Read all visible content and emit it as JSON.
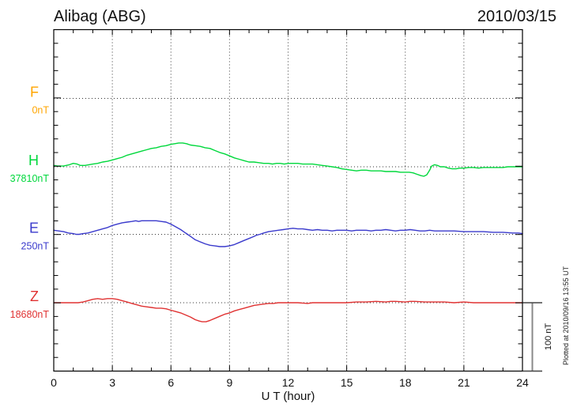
{
  "header": {
    "station": "Alibag (ABG)",
    "date": "2010/03/15"
  },
  "chart_data": {
    "type": "line",
    "title": "Alibag (ABG)",
    "date": "2010/03/15",
    "xlabel": "U T (hour)",
    "xlim": [
      0,
      24
    ],
    "x_major_ticks": [
      0,
      3,
      6,
      9,
      12,
      15,
      18,
      21,
      24
    ],
    "x_minor_step_hours": 1,
    "grid": "dotted vertical lines every 3 h; dotted horizontal line at each component baseline",
    "y_minor_tick_nT": 20,
    "baseline_spacing_nT": 100,
    "scale_bar": {
      "label": "100 nT",
      "value_nT": 100
    },
    "footnote": "Plotted at 2010/09/16 13:55 UT",
    "series": [
      {
        "name": "F",
        "baseline_label": "0nT",
        "color": "#FFA500",
        "points_hour_nT": []
      },
      {
        "name": "H",
        "baseline_label": "37810nT",
        "color": "#00D83C",
        "points_hour_nT": [
          [
            0,
            2
          ],
          [
            0.2,
            1
          ],
          [
            0.5,
            1
          ],
          [
            0.8,
            3
          ],
          [
            1,
            5
          ],
          [
            1.2,
            4
          ],
          [
            1.35,
            2
          ],
          [
            1.6,
            2
          ],
          [
            1.8,
            3
          ],
          [
            2,
            4
          ],
          [
            2.25,
            5
          ],
          [
            2.5,
            7
          ],
          [
            2.75,
            8
          ],
          [
            3,
            10
          ],
          [
            3.25,
            12
          ],
          [
            3.5,
            14
          ],
          [
            3.75,
            17
          ],
          [
            4,
            19
          ],
          [
            4.25,
            21
          ],
          [
            4.5,
            23
          ],
          [
            4.75,
            25
          ],
          [
            5,
            27
          ],
          [
            5.25,
            28
          ],
          [
            5.5,
            30
          ],
          [
            5.75,
            31
          ],
          [
            6,
            33
          ],
          [
            6.2,
            34
          ],
          [
            6.4,
            35
          ],
          [
            6.6,
            35
          ],
          [
            6.8,
            34
          ],
          [
            7,
            32
          ],
          [
            7.25,
            31
          ],
          [
            7.5,
            30
          ],
          [
            7.75,
            28
          ],
          [
            8,
            27
          ],
          [
            8.25,
            24
          ],
          [
            8.5,
            21
          ],
          [
            8.75,
            19
          ],
          [
            9,
            16
          ],
          [
            9.25,
            13
          ],
          [
            9.5,
            11
          ],
          [
            9.75,
            9
          ],
          [
            10,
            7
          ],
          [
            10.25,
            7
          ],
          [
            10.5,
            6
          ],
          [
            10.75,
            5
          ],
          [
            11,
            5
          ],
          [
            11.2,
            4
          ],
          [
            11.4,
            5
          ],
          [
            11.6,
            5
          ],
          [
            11.8,
            4
          ],
          [
            12,
            5
          ],
          [
            12.25,
            5
          ],
          [
            12.5,
            5
          ],
          [
            12.75,
            4
          ],
          [
            13,
            4
          ],
          [
            13.25,
            4
          ],
          [
            13.5,
            3
          ],
          [
            13.75,
            2
          ],
          [
            14,
            1
          ],
          [
            14.25,
            0
          ],
          [
            14.5,
            -1
          ],
          [
            14.75,
            -3
          ],
          [
            15,
            -4
          ],
          [
            15.25,
            -5
          ],
          [
            15.5,
            -6
          ],
          [
            15.75,
            -5
          ],
          [
            16,
            -5
          ],
          [
            16.25,
            -6
          ],
          [
            16.5,
            -6
          ],
          [
            16.75,
            -6
          ],
          [
            17,
            -7
          ],
          [
            17.25,
            -7
          ],
          [
            17.5,
            -7
          ],
          [
            17.75,
            -8
          ],
          [
            18,
            -8
          ],
          [
            18.2,
            -8
          ],
          [
            18.4,
            -9
          ],
          [
            18.6,
            -11
          ],
          [
            18.8,
            -13
          ],
          [
            18.95,
            -14
          ],
          [
            19.1,
            -12
          ],
          [
            19.25,
            -5
          ],
          [
            19.35,
            1
          ],
          [
            19.5,
            3
          ],
          [
            19.65,
            2
          ],
          [
            19.8,
            0
          ],
          [
            20,
            0
          ],
          [
            20.2,
            -2
          ],
          [
            20.4,
            -3
          ],
          [
            20.6,
            -3
          ],
          [
            20.8,
            -2
          ],
          [
            21,
            -2
          ],
          [
            21.25,
            -1
          ],
          [
            21.5,
            -1
          ],
          [
            21.75,
            -2
          ],
          [
            22,
            -1
          ],
          [
            22.25,
            -1
          ],
          [
            22.5,
            -1
          ],
          [
            22.75,
            -1
          ],
          [
            23,
            -1
          ],
          [
            23.25,
            0
          ],
          [
            23.5,
            0
          ],
          [
            23.75,
            0
          ],
          [
            24,
            0
          ]
        ]
      },
      {
        "name": "E",
        "baseline_label": "250nT",
        "color": "#3A3ACC",
        "points_hour_nT": [
          [
            0,
            6
          ],
          [
            0.25,
            5
          ],
          [
            0.5,
            4
          ],
          [
            0.75,
            2
          ],
          [
            1,
            1
          ],
          [
            1.15,
            0
          ],
          [
            1.3,
            0
          ],
          [
            1.5,
            1
          ],
          [
            1.75,
            2
          ],
          [
            2,
            4
          ],
          [
            2.25,
            6
          ],
          [
            2.5,
            8
          ],
          [
            2.75,
            10
          ],
          [
            3,
            13
          ],
          [
            3.25,
            15
          ],
          [
            3.5,
            17
          ],
          [
            3.75,
            18
          ],
          [
            4,
            19
          ],
          [
            4.2,
            20
          ],
          [
            4.35,
            19
          ],
          [
            4.5,
            20
          ],
          [
            4.75,
            20
          ],
          [
            5,
            20
          ],
          [
            5.25,
            20
          ],
          [
            5.5,
            19
          ],
          [
            5.75,
            18
          ],
          [
            6,
            15
          ],
          [
            6.25,
            11
          ],
          [
            6.5,
            7
          ],
          [
            6.7,
            3
          ],
          [
            6.85,
            0
          ],
          [
            7,
            -3
          ],
          [
            7.25,
            -8
          ],
          [
            7.5,
            -11
          ],
          [
            7.75,
            -14
          ],
          [
            8,
            -16
          ],
          [
            8.25,
            -17
          ],
          [
            8.5,
            -18
          ],
          [
            8.75,
            -18
          ],
          [
            9,
            -17
          ],
          [
            9.25,
            -15
          ],
          [
            9.5,
            -12
          ],
          [
            9.75,
            -9
          ],
          [
            10,
            -6
          ],
          [
            10.25,
            -3
          ],
          [
            10.4,
            -1
          ],
          [
            10.55,
            0
          ],
          [
            10.75,
            2
          ],
          [
            11,
            4
          ],
          [
            11.25,
            5
          ],
          [
            11.5,
            6
          ],
          [
            11.75,
            7
          ],
          [
            12,
            8
          ],
          [
            12.25,
            9
          ],
          [
            12.5,
            8
          ],
          [
            12.75,
            8
          ],
          [
            13,
            7
          ],
          [
            13.25,
            6
          ],
          [
            13.5,
            7
          ],
          [
            13.75,
            6
          ],
          [
            14,
            6
          ],
          [
            14.25,
            5
          ],
          [
            14.5,
            6
          ],
          [
            14.75,
            6
          ],
          [
            15,
            6
          ],
          [
            15.25,
            5
          ],
          [
            15.5,
            6
          ],
          [
            15.75,
            6
          ],
          [
            16,
            6
          ],
          [
            16.25,
            5
          ],
          [
            16.5,
            6
          ],
          [
            16.75,
            6
          ],
          [
            17,
            7
          ],
          [
            17.25,
            6
          ],
          [
            17.5,
            5
          ],
          [
            17.75,
            6
          ],
          [
            18,
            6
          ],
          [
            18.25,
            7
          ],
          [
            18.5,
            6
          ],
          [
            18.75,
            5
          ],
          [
            19,
            5
          ],
          [
            19.25,
            6
          ],
          [
            19.5,
            5
          ],
          [
            19.75,
            5
          ],
          [
            20,
            5
          ],
          [
            20.5,
            5
          ],
          [
            21,
            4
          ],
          [
            21.5,
            4
          ],
          [
            22,
            4
          ],
          [
            22.5,
            3
          ],
          [
            23,
            3
          ],
          [
            23.5,
            2
          ],
          [
            23.8,
            2
          ],
          [
            24,
            1
          ]
        ]
      },
      {
        "name": "Z",
        "baseline_label": "18680nT",
        "color": "#E03232",
        "points_hour_nT": [
          [
            0,
            0
          ],
          [
            0.25,
            0
          ],
          [
            0.5,
            0
          ],
          [
            0.75,
            0
          ],
          [
            1,
            0
          ],
          [
            1.25,
            0
          ],
          [
            1.5,
            1
          ],
          [
            1.75,
            3
          ],
          [
            2,
            5
          ],
          [
            2.25,
            6
          ],
          [
            2.5,
            5
          ],
          [
            2.75,
            6
          ],
          [
            3,
            6
          ],
          [
            3.25,
            5
          ],
          [
            3.5,
            3
          ],
          [
            3.75,
            1
          ],
          [
            4,
            -1
          ],
          [
            4.25,
            -3
          ],
          [
            4.5,
            -5
          ],
          [
            4.75,
            -6
          ],
          [
            5,
            -7
          ],
          [
            5.25,
            -8
          ],
          [
            5.5,
            -8
          ],
          [
            5.75,
            -9
          ],
          [
            6,
            -11
          ],
          [
            6.25,
            -13
          ],
          [
            6.5,
            -15
          ],
          [
            6.75,
            -18
          ],
          [
            7,
            -21
          ],
          [
            7.25,
            -25
          ],
          [
            7.45,
            -27
          ],
          [
            7.6,
            -28
          ],
          [
            7.8,
            -28
          ],
          [
            8,
            -26
          ],
          [
            8.25,
            -23
          ],
          [
            8.5,
            -20
          ],
          [
            8.75,
            -17
          ],
          [
            9,
            -15
          ],
          [
            9.25,
            -12
          ],
          [
            9.5,
            -10
          ],
          [
            9.75,
            -8
          ],
          [
            10,
            -6
          ],
          [
            10.25,
            -4
          ],
          [
            10.5,
            -3
          ],
          [
            10.75,
            -2
          ],
          [
            11,
            -1
          ],
          [
            11.25,
            -1
          ],
          [
            11.5,
            0
          ],
          [
            12,
            0
          ],
          [
            12.5,
            0
          ],
          [
            13,
            -1
          ],
          [
            13.25,
            0
          ],
          [
            13.5,
            0
          ],
          [
            14,
            0
          ],
          [
            14.5,
            0
          ],
          [
            15,
            0
          ],
          [
            15.5,
            1
          ],
          [
            16,
            1
          ],
          [
            16.5,
            2
          ],
          [
            17,
            1
          ],
          [
            17.25,
            2
          ],
          [
            17.5,
            2
          ],
          [
            18,
            1
          ],
          [
            18.25,
            2
          ],
          [
            18.5,
            2
          ],
          [
            19,
            1
          ],
          [
            19.5,
            1
          ],
          [
            20,
            1
          ],
          [
            20.5,
            0
          ],
          [
            21,
            1
          ],
          [
            21.5,
            0
          ],
          [
            22,
            0
          ],
          [
            22.5,
            0
          ],
          [
            23,
            0
          ],
          [
            23.5,
            0
          ],
          [
            24,
            0
          ]
        ]
      }
    ]
  }
}
